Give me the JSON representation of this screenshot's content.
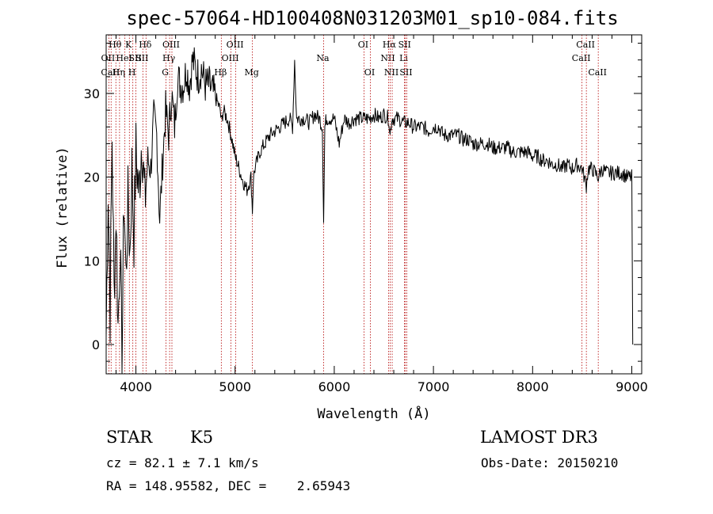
{
  "chart_data": {
    "type": "line",
    "title": "spec-57064-HD100408N031203M01_sp10-084.fits",
    "xlabel": "Wavelength (Å)",
    "ylabel": "Flux (relative)",
    "xlim": [
      3700,
      9100
    ],
    "ylim": [
      -3.5,
      37
    ],
    "x_ticks": [
      4000,
      5000,
      6000,
      7000,
      8000,
      9000
    ],
    "y_ticks": [
      0,
      10,
      20,
      30
    ],
    "grid": false,
    "series": [
      {
        "x": [
          3700,
          3720,
          3740,
          3760,
          3780,
          3800,
          3820,
          3840,
          3860,
          3880,
          3900,
          3920,
          3940,
          3960,
          3980,
          4000,
          4030,
          4060,
          4090,
          4120,
          4150,
          4180,
          4210,
          4240,
          4270,
          4300,
          4330,
          4360,
          4390,
          4420,
          4450,
          4480,
          4510,
          4540,
          4570,
          4600,
          4630,
          4660,
          4700,
          4740,
          4780,
          4820,
          4850,
          4862,
          4880,
          4920,
          4960,
          5000,
          5040,
          5080,
          5120,
          5160,
          5175,
          5185,
          5200,
          5250,
          5300,
          5350,
          5400,
          5450,
          5500,
          5550,
          5580,
          5600,
          5620,
          5650,
          5700,
          5750,
          5800,
          5850,
          5880,
          5893,
          5905,
          5920,
          5950,
          6000,
          6050,
          6100,
          6150,
          6200,
          6250,
          6300,
          6350,
          6400,
          6450,
          6500,
          6550,
          6563,
          6580,
          6600,
          6650,
          6700,
          6750,
          6800,
          6850,
          6900,
          6950,
          7000,
          7050,
          7100,
          7150,
          7200,
          7250,
          7300,
          7350,
          7400,
          7450,
          7500,
          7550,
          7600,
          7650,
          7700,
          7750,
          7800,
          7850,
          7900,
          7950,
          8000,
          8050,
          8100,
          8150,
          8200,
          8250,
          8300,
          8350,
          8400,
          8450,
          8500,
          8542,
          8560,
          8600,
          8662,
          8700,
          8750,
          8800,
          8850,
          8900,
          8950,
          9000,
          9010
        ],
        "values": [
          1,
          19,
          4,
          25,
          6,
          16,
          2,
          12,
          -2,
          18,
          8,
          17,
          11,
          21,
          13,
          23,
          18,
          25,
          17,
          22,
          21,
          27,
          25,
          15,
          22,
          28,
          25,
          30,
          26,
          32,
          31,
          31,
          33,
          31,
          34,
          33,
          32,
          33,
          31,
          31,
          30,
          29,
          28,
          26.5,
          28,
          27,
          25,
          22.5,
          21,
          19.5,
          18.5,
          20,
          16,
          20,
          21,
          23,
          24,
          25,
          25.5,
          26,
          26.5,
          27,
          26,
          34,
          27,
          27,
          27,
          26.5,
          27.5,
          27,
          26,
          15,
          26,
          27,
          27,
          27,
          24,
          27,
          26.5,
          27,
          27,
          27,
          27,
          27.5,
          27,
          27.5,
          27,
          25,
          27,
          27,
          27,
          26.5,
          26.5,
          26,
          26,
          26,
          25.5,
          26,
          26,
          25,
          25,
          25,
          25,
          24.5,
          24.5,
          24,
          24,
          24,
          24,
          23.5,
          23.5,
          23.5,
          23.5,
          23,
          23,
          23,
          23,
          22.5,
          22.5,
          22,
          22,
          21.5,
          21.5,
          21,
          21.5,
          21,
          21.5,
          21,
          19,
          21,
          21,
          20,
          21,
          20.5,
          20.5,
          20.5,
          20.5,
          20,
          20,
          0
        ]
      }
    ],
    "line_markers": [
      {
        "wl": 3727,
        "label": "OII",
        "row": 1
      },
      {
        "wl": 3750,
        "label": "CaII",
        "row": 2
      },
      {
        "wl": 3798,
        "label": "Hθ",
        "row": 0
      },
      {
        "wl": 3835,
        "label": "Hη",
        "row": 2
      },
      {
        "wl": 3889,
        "label": "HeI",
        "row": 1
      },
      {
        "wl": 3934,
        "label": "K",
        "row": 0
      },
      {
        "wl": 3969,
        "label": "H",
        "row": 2
      },
      {
        "wl": 4000,
        "label": "SII",
        "row": 1
      },
      {
        "wl": 4102,
        "label": "Hδ",
        "row": 0
      },
      {
        "wl": 4070,
        "label": "SII",
        "row": 1
      },
      {
        "wl": 4304,
        "label": "G",
        "row": 2
      },
      {
        "wl": 4340,
        "label": "Hγ",
        "row": 1
      },
      {
        "wl": 4363,
        "label": "OIII",
        "row": 0
      },
      {
        "wl": 4861,
        "label": "Hβ",
        "row": 2
      },
      {
        "wl": 4959,
        "label": "OIII",
        "row": 1
      },
      {
        "wl": 5007,
        "label": "OIII",
        "row": 0
      },
      {
        "wl": 5175,
        "label": "Mg",
        "row": 2
      },
      {
        "wl": 5893,
        "label": "Na",
        "row": 1
      },
      {
        "wl": 6300,
        "label": "OI",
        "row": 0
      },
      {
        "wl": 6364,
        "label": "OI",
        "row": 2
      },
      {
        "wl": 6548,
        "label": "NII",
        "row": 1
      },
      {
        "wl": 6563,
        "label": "Hα",
        "row": 0
      },
      {
        "wl": 6584,
        "label": "NII",
        "row": 2
      },
      {
        "wl": 6717,
        "label": "SII",
        "row": 0
      },
      {
        "wl": 6708,
        "label": "Li",
        "row": 1
      },
      {
        "wl": 6731,
        "label": "SII",
        "row": 2
      },
      {
        "wl": 8498,
        "label": "CaII",
        "row": 1
      },
      {
        "wl": 8542,
        "label": "CaII",
        "row": 0
      },
      {
        "wl": 8662,
        "label": "CaII",
        "row": 2
      }
    ]
  },
  "info": {
    "class": "STAR",
    "subclass": "K5",
    "survey": "LAMOST DR3",
    "cz": "cz = 82.1 ± 7.1 km/s",
    "obs_date": "Obs-Date: 20150210",
    "radec": "RA = 148.95582, DEC =    2.65943"
  },
  "colors": {
    "spectrum": "#000000",
    "marker_line": "#b30000",
    "axis": "#000000"
  }
}
